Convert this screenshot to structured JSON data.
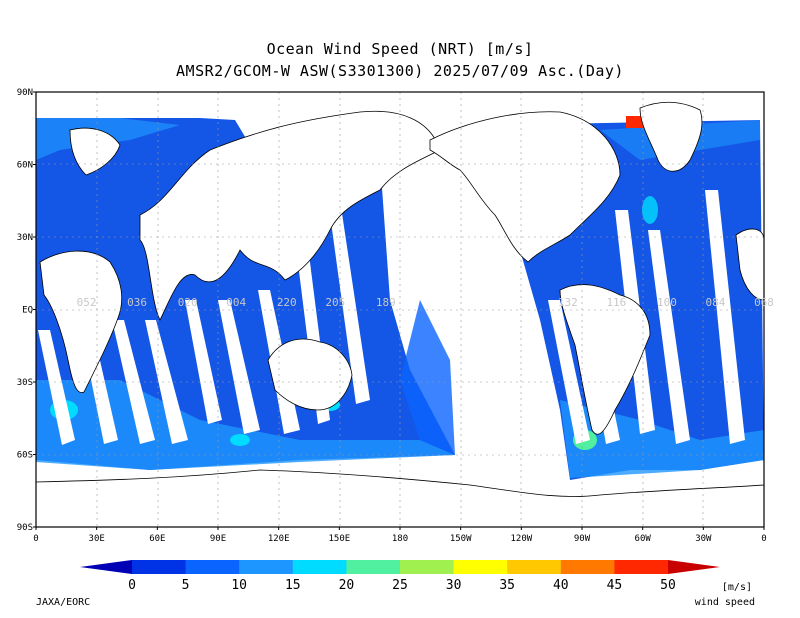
{
  "title_line1": "Ocean Wind Speed (NRT) [m/s]",
  "title_line2": "AMSR2/GCOM-W ASW(S3301300) 2025/07/09 Asc.(Day)",
  "lat_labels": [
    "90N",
    "60N",
    "30N",
    "EQ",
    "30S",
    "60S",
    "90S"
  ],
  "lon_labels": [
    "0",
    "30E",
    "60E",
    "90E",
    "120E",
    "150E",
    "180",
    "150W",
    "120W",
    "90W",
    "60W",
    "30W",
    "0"
  ],
  "orbit_labels": [
    {
      "text": "052",
      "lon": 25
    },
    {
      "text": "036",
      "lon": 50
    },
    {
      "text": "020",
      "lon": 75
    },
    {
      "text": "004",
      "lon": 99
    },
    {
      "text": "220",
      "lon": 124
    },
    {
      "text": "205",
      "lon": 148
    },
    {
      "text": "189",
      "lon": 173
    },
    {
      "text": "132",
      "lon": 263
    },
    {
      "text": "116",
      "lon": 287
    },
    {
      "text": "100",
      "lon": 312
    },
    {
      "text": "084",
      "lon": 336
    },
    {
      "text": "068",
      "lon": 360
    }
  ],
  "colorbar": {
    "ticks": [
      "0",
      "5",
      "10",
      "15",
      "20",
      "25",
      "30",
      "35",
      "40",
      "45",
      "50"
    ],
    "colors": [
      "#0000b4",
      "#0032e6",
      "#0a64ff",
      "#1e96ff",
      "#00dcff",
      "#50f0a0",
      "#a0f050",
      "#ffff00",
      "#ffc800",
      "#ff7800",
      "#ff2800",
      "#c80000"
    ],
    "unit": "[m/s]",
    "caption": "wind speed"
  },
  "credit": "JAXA/EORC"
}
